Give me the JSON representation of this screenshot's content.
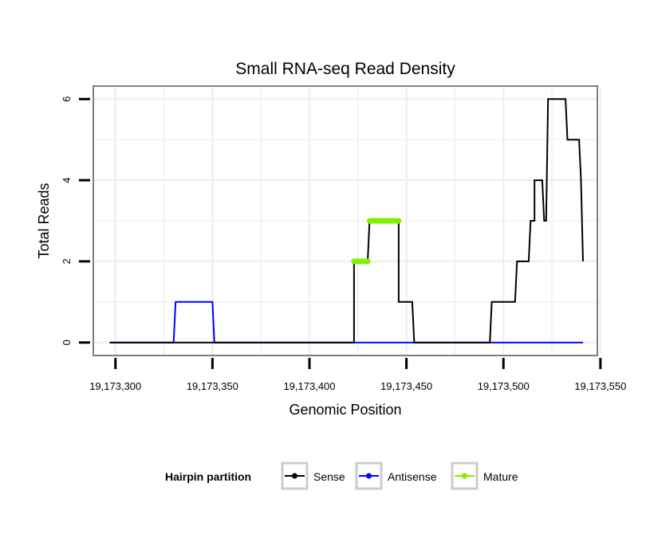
{
  "chart_data": {
    "type": "line",
    "title": "Small RNA-seq Read Density",
    "xlabel": "Genomic Position",
    "ylabel": "Total Reads",
    "xlim": [
      19173289,
      19173548
    ],
    "ylim": [
      -0.3,
      6.3
    ],
    "x_ticks": [
      19173300,
      19173350,
      19173400,
      19173450,
      19173500,
      19173550
    ],
    "x_tick_labels": [
      "19,173,300",
      "19,173,350",
      "19,173,400",
      "19,173,450",
      "19,173,500",
      "19,173,550"
    ],
    "y_ticks": [
      0,
      2,
      4,
      6
    ],
    "y_tick_labels": [
      "0",
      "2",
      "4",
      "6"
    ],
    "grid": true,
    "legend": {
      "title": "Hairpin partition",
      "position": "bottom",
      "entries": [
        {
          "label": "Sense",
          "color": "#000000"
        },
        {
          "label": "Antisense",
          "color": "#0000ff"
        },
        {
          "label": "Mature",
          "color": "#80f000"
        }
      ]
    },
    "series": [
      {
        "name": "Sense",
        "color": "#000000",
        "points": [
          [
            19173297,
            0
          ],
          [
            19173423,
            0
          ],
          [
            19173423,
            2
          ],
          [
            19173430,
            2
          ],
          [
            19173431,
            3
          ],
          [
            19173446,
            3
          ],
          [
            19173446,
            1
          ],
          [
            19173453,
            1
          ],
          [
            19173454,
            0
          ],
          [
            19173493,
            0
          ],
          [
            19173494,
            1
          ],
          [
            19173506,
            1
          ],
          [
            19173507,
            2
          ],
          [
            19173513,
            2
          ],
          [
            19173514,
            3
          ],
          [
            19173516,
            3
          ],
          [
            19173516,
            4
          ],
          [
            19173520,
            4
          ],
          [
            19173521,
            3
          ],
          [
            19173522,
            3
          ],
          [
            19173523,
            6
          ],
          [
            19173532,
            6
          ],
          [
            19173533,
            5
          ],
          [
            19173539,
            5
          ],
          [
            19173540,
            4
          ],
          [
            19173541,
            2
          ]
        ]
      },
      {
        "name": "Antisense",
        "color": "#0000ff",
        "points": [
          [
            19173297,
            0
          ],
          [
            19173330,
            0
          ],
          [
            19173331,
            1
          ],
          [
            19173350,
            1
          ],
          [
            19173351,
            0
          ],
          [
            19173541,
            0
          ]
        ]
      },
      {
        "name": "Mature",
        "color": "#80f000",
        "segments": [
          [
            [
              19173423,
              2
            ],
            [
              19173430,
              2
            ]
          ],
          [
            [
              19173431,
              3
            ],
            [
              19173446,
              3
            ]
          ]
        ]
      }
    ]
  }
}
